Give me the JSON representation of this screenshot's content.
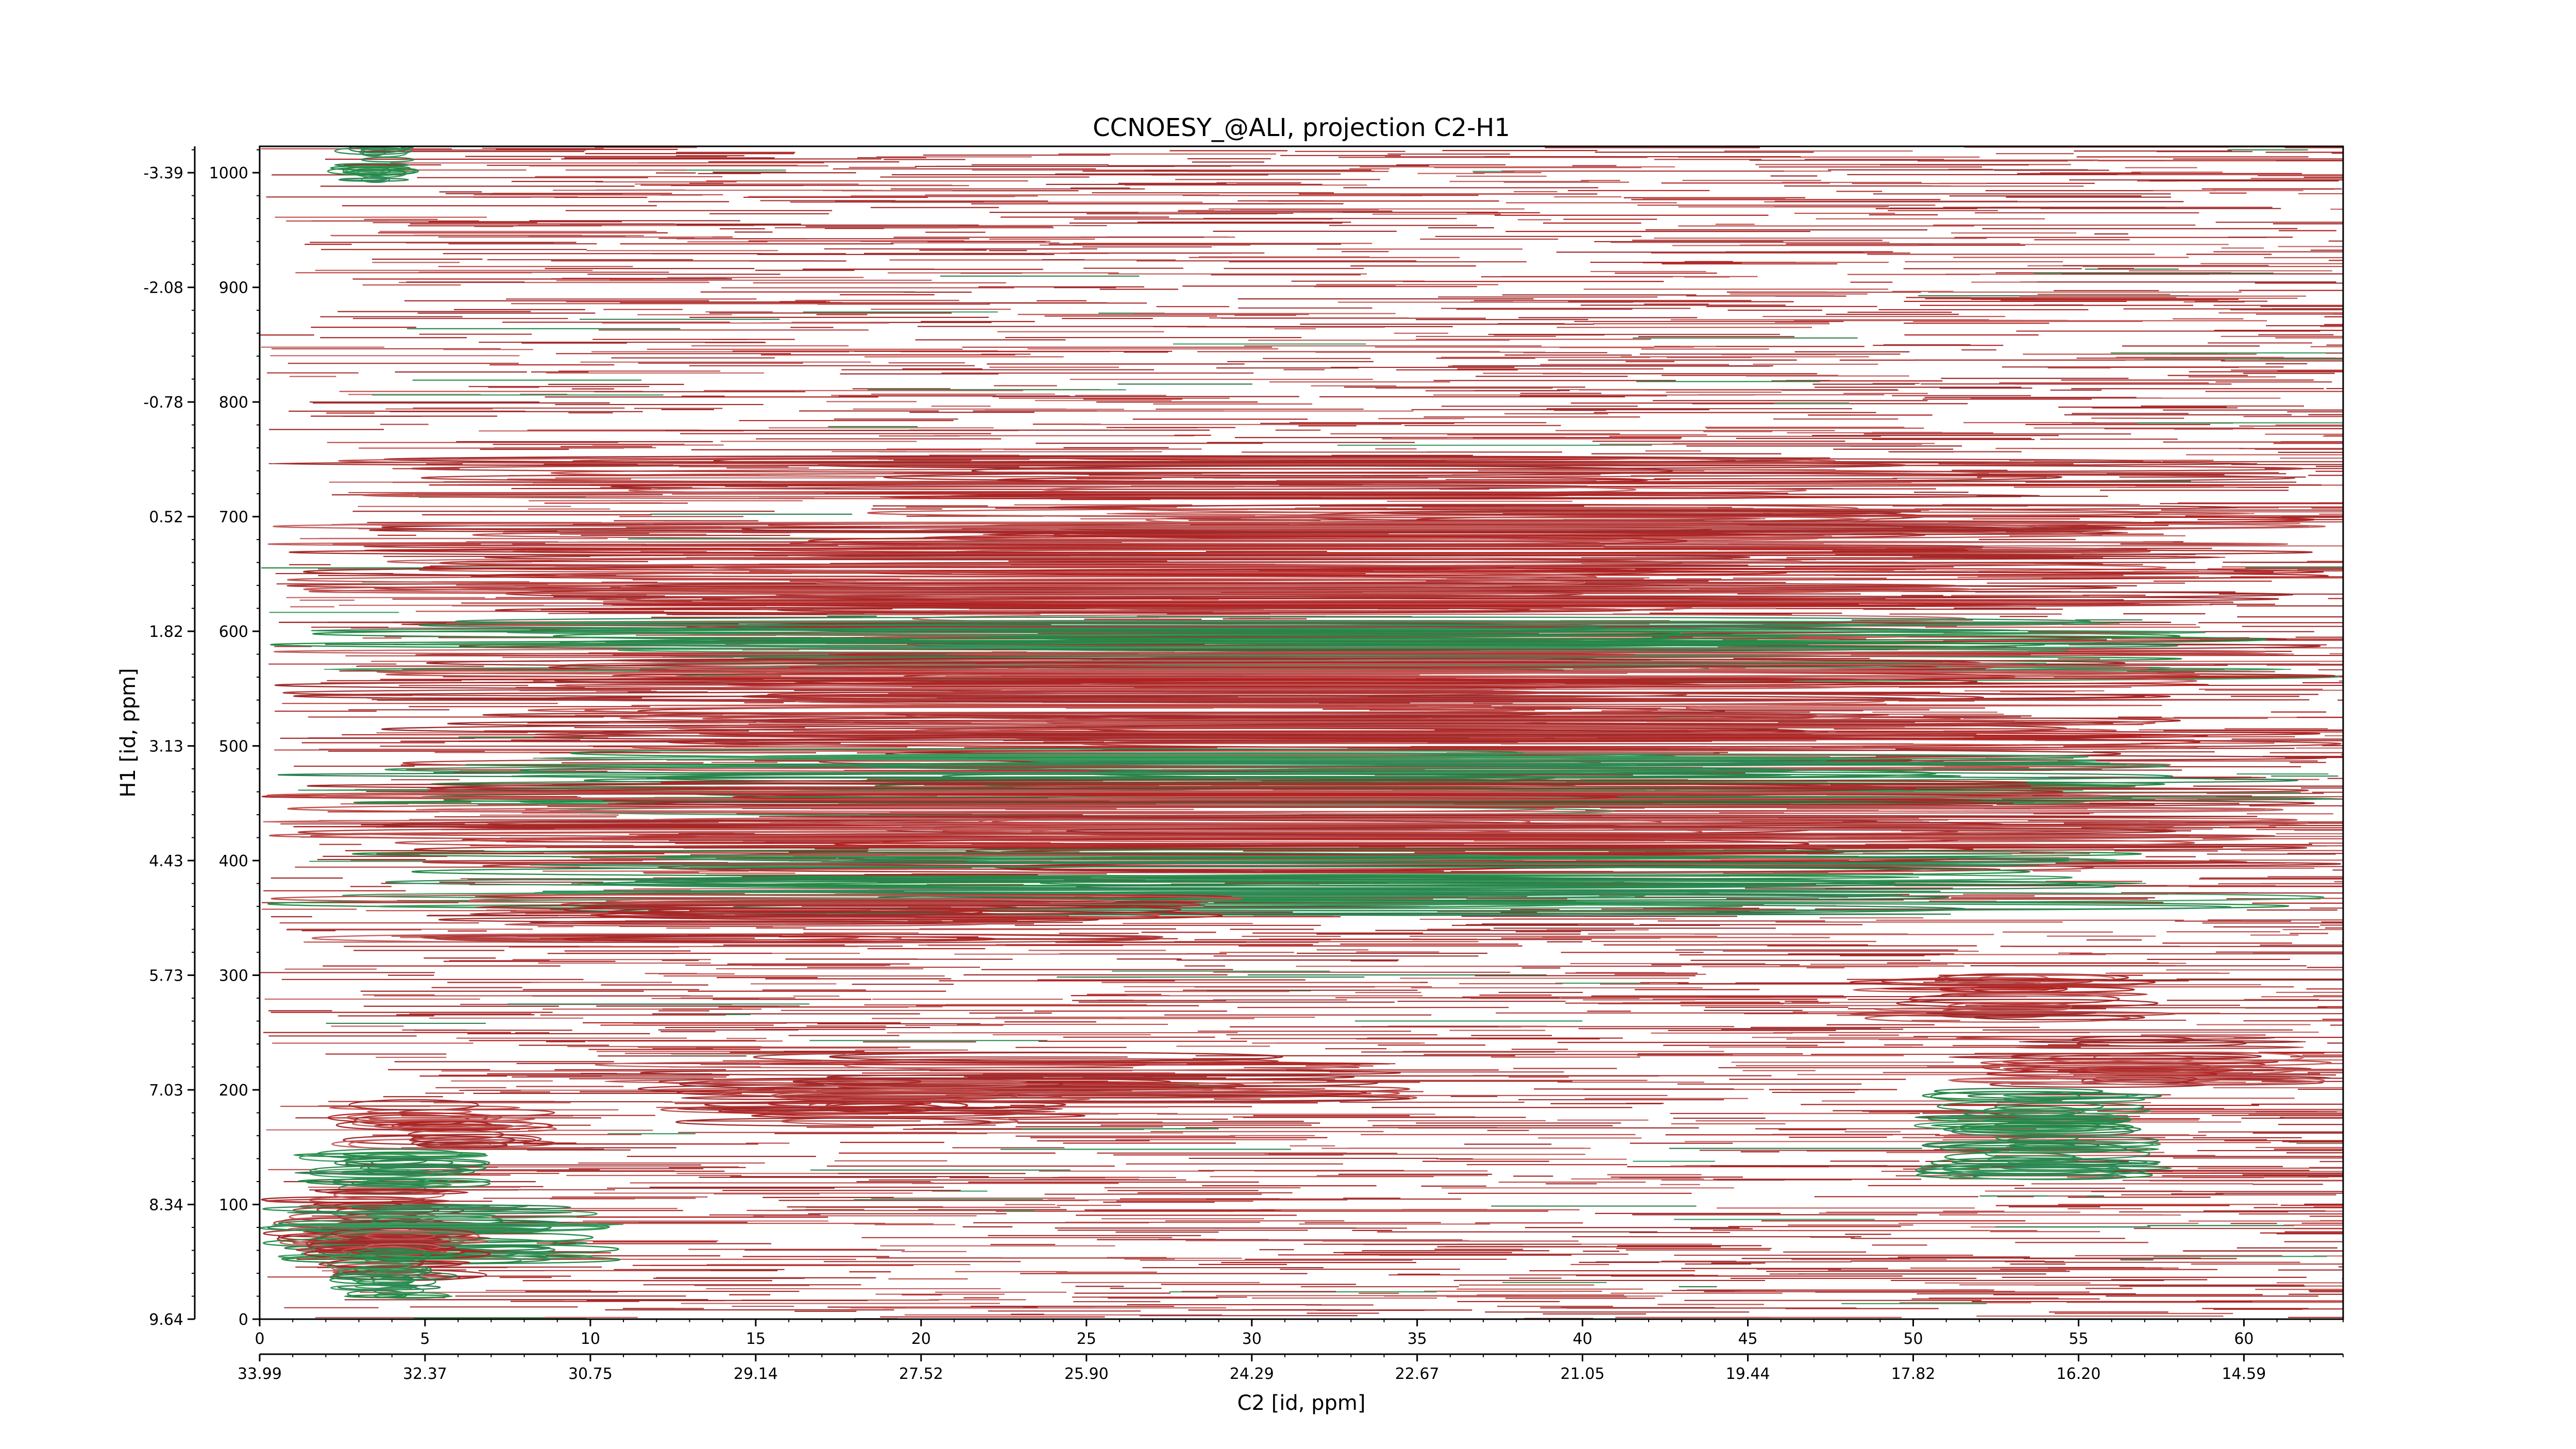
{
  "chart_data": {
    "type": "heatmap",
    "subtype": "nmr-contour",
    "title": "CCNOESY_@ALI, projection C2-H1",
    "xlabel": "C2 [id, ppm]",
    "ylabel": "H1 [id, ppm]",
    "x_index_range": [
      0,
      63
    ],
    "y_index_range": [
      0,
      1023
    ],
    "x_index_ticks": [
      0,
      5,
      10,
      15,
      20,
      25,
      30,
      35,
      40,
      45,
      50,
      55,
      60
    ],
    "x_ppm_ticks": [
      "33.99",
      "32.37",
      "30.75",
      "29.14",
      "27.52",
      "25.90",
      "24.29",
      "22.67",
      "21.05",
      "19.44",
      "17.82",
      "16.20",
      "14.59"
    ],
    "y_index_ticks": [
      0,
      100,
      200,
      300,
      400,
      500,
      600,
      700,
      800,
      900,
      1000
    ],
    "y_ppm_ticks": [
      "9.64",
      "8.34",
      "7.03",
      "5.73",
      "4.43",
      "3.13",
      "1.82",
      "0.52",
      "-0.78",
      "-2.08",
      "-3.39"
    ],
    "grid": false,
    "positive_color": "#b22222",
    "negative_color": "#2e8b57",
    "strong_bands": [
      {
        "y": 735,
        "x_range": [
          0,
          63
        ],
        "intensity": 0.5,
        "sign": "positive"
      },
      {
        "y": 700,
        "x_range": [
          17,
          63
        ],
        "intensity": 0.55,
        "sign": "positive"
      },
      {
        "y": 675,
        "x_range": [
          0,
          63
        ],
        "intensity": 0.75,
        "sign": "positive"
      },
      {
        "y": 640,
        "x_range": [
          0,
          63
        ],
        "intensity": 0.7,
        "sign": "positive"
      },
      {
        "y": 605,
        "x_range": [
          0,
          63
        ],
        "intensity": 0.8,
        "sign": "positive"
      },
      {
        "y": 585,
        "x_range": [
          0,
          63
        ],
        "intensity": 0.85,
        "sign": "negative"
      },
      {
        "y": 560,
        "x_range": [
          0,
          63
        ],
        "intensity": 0.8,
        "sign": "positive"
      },
      {
        "y": 530,
        "x_range": [
          0,
          63
        ],
        "intensity": 0.8,
        "sign": "positive"
      },
      {
        "y": 500,
        "x_range": [
          0,
          63
        ],
        "intensity": 0.75,
        "sign": "positive"
      },
      {
        "y": 467,
        "x_range": [
          0,
          63
        ],
        "intensity": 1.0,
        "sign": "negative"
      },
      {
        "y": 445,
        "x_range": [
          0,
          63
        ],
        "intensity": 0.85,
        "sign": "positive"
      },
      {
        "y": 415,
        "x_range": [
          0,
          63
        ],
        "intensity": 0.8,
        "sign": "positive"
      },
      {
        "y": 380,
        "x_range": [
          0,
          63
        ],
        "intensity": 0.95,
        "sign": "negative"
      },
      {
        "y": 350,
        "x_range": [
          0,
          30
        ],
        "intensity": 0.6,
        "sign": "positive"
      },
      {
        "y": 280,
        "x_range": [
          48,
          58
        ],
        "intensity": 0.55,
        "sign": "positive"
      },
      {
        "y": 225,
        "x_range": [
          51,
          63
        ],
        "intensity": 0.7,
        "sign": "positive"
      },
      {
        "y": 210,
        "x_range": [
          10,
          35
        ],
        "intensity": 0.6,
        "sign": "positive"
      },
      {
        "y": 190,
        "x_range": [
          12,
          25
        ],
        "intensity": 0.55,
        "sign": "positive"
      },
      {
        "y": 180,
        "x_range": [
          50,
          58
        ],
        "intensity": 0.6,
        "sign": "negative"
      },
      {
        "y": 170,
        "x_range": [
          2,
          9
        ],
        "intensity": 0.55,
        "sign": "positive"
      },
      {
        "y": 140,
        "x_range": [
          50,
          58
        ],
        "intensity": 0.6,
        "sign": "negative"
      },
      {
        "y": 125,
        "x_range": [
          1,
          7
        ],
        "intensity": 0.6,
        "sign": "negative"
      },
      {
        "y": 90,
        "x_range": [
          0,
          7
        ],
        "intensity": 0.85,
        "sign": "positive"
      },
      {
        "y": 75,
        "x_range": [
          0,
          11
        ],
        "intensity": 0.8,
        "sign": "negative"
      },
      {
        "y": 55,
        "x_range": [
          1,
          7
        ],
        "intensity": 0.7,
        "sign": "positive"
      },
      {
        "y": 40,
        "x_range": [
          2,
          6
        ],
        "intensity": 0.65,
        "sign": "negative"
      },
      {
        "y": 1008,
        "x_range": [
          2,
          5
        ],
        "intensity": 0.4,
        "sign": "negative"
      }
    ]
  }
}
